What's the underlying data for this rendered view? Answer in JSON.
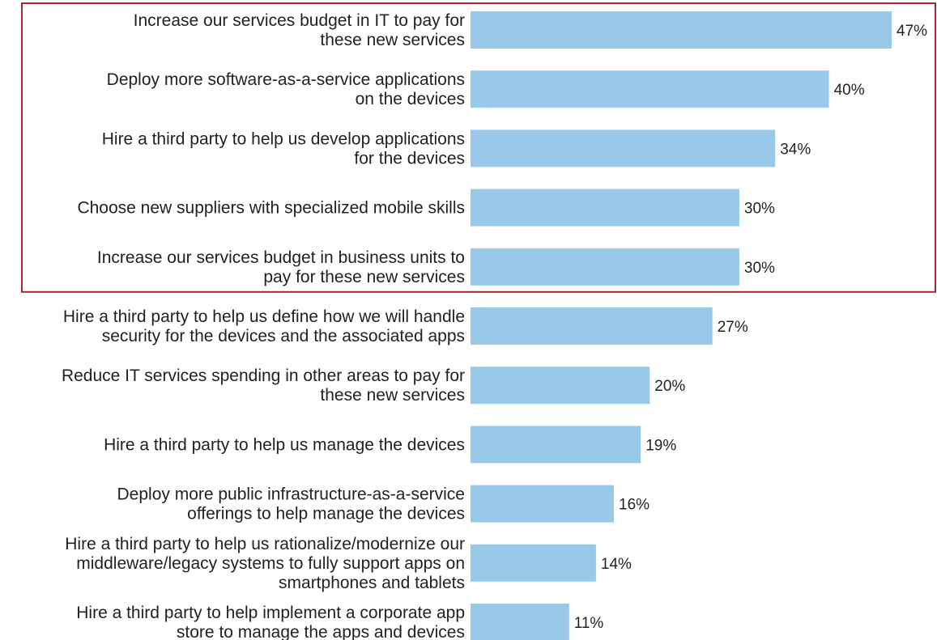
{
  "chart_data": {
    "type": "bar",
    "orientation": "horizontal",
    "categories": [
      [
        "Increase our services budget in IT to pay for",
        "these new services"
      ],
      [
        "Deploy more software-as-a-service applications",
        "on the devices"
      ],
      [
        "Hire a third party to help us develop applications",
        "for the devices"
      ],
      [
        "Choose new suppliers with specialized mobile skills"
      ],
      [
        "Increase our services budget in business units to",
        "pay for these new services"
      ],
      [
        "Hire a third party to help us define how we will handle",
        "security for the devices and the associated apps"
      ],
      [
        "Reduce IT services spending in other areas to pay for",
        "these new services"
      ],
      [
        "Hire a third party to help us manage the devices"
      ],
      [
        "Deploy more public infrastructure-as-a-service",
        "offerings to help manage the devices"
      ],
      [
        "Hire a third party to help us rationalize/modernize our",
        "middleware/legacy systems to fully support apps on",
        "smartphones and tablets"
      ],
      [
        "Hire a third party to help implement a corporate app",
        "store to manage the apps and devices"
      ]
    ],
    "values": [
      47,
      40,
      34,
      30,
      30,
      27,
      20,
      19,
      16,
      14,
      11
    ],
    "value_labels": [
      "47%",
      "40%",
      "34%",
      "30%",
      "30%",
      "27%",
      "20%",
      "19%",
      "16%",
      "14%",
      "11%"
    ],
    "highlighted_categories": [
      0,
      1,
      2,
      3,
      4
    ],
    "xlim": [
      0,
      47
    ],
    "grid": false,
    "legend": "none"
  },
  "colors": {
    "bar": "#98c9e9",
    "highlight_border": "#a5282a",
    "text": "#231f20"
  }
}
